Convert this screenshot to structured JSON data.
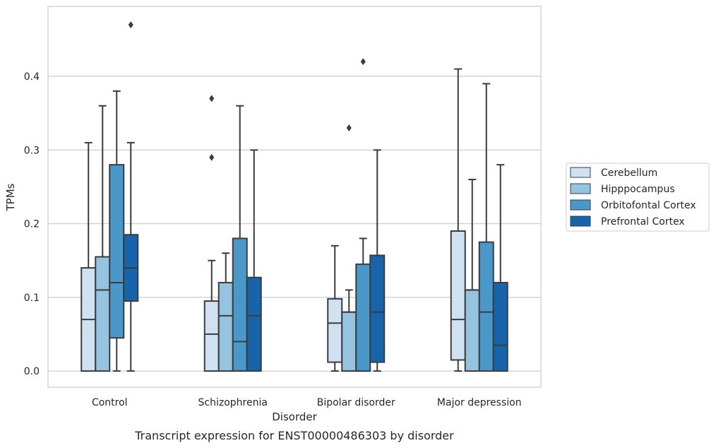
{
  "chart_data": {
    "type": "box",
    "caption": "Transcript expression for ENST00000486303 by disorder",
    "xlabel": "Disorder",
    "ylabel": "TPMs",
    "ylim": [
      -0.022,
      0.495
    ],
    "yticks": [
      0.0,
      0.1,
      0.2,
      0.3,
      0.4
    ],
    "ytick_labels": [
      "0.0",
      "0.1",
      "0.2",
      "0.3",
      "0.4"
    ],
    "grid": true,
    "legend_position": "right",
    "categories": [
      "Control",
      "Schizophrenia",
      "Bipolar disorder",
      "Major depression"
    ],
    "series": [
      {
        "name": "Cerebellum",
        "color": "#d0e1f2",
        "boxes": [
          {
            "whislo": 0.0,
            "q1": 0.0,
            "med": 0.07,
            "q3": 0.14,
            "whishi": 0.31,
            "fliers": []
          },
          {
            "whislo": 0.0,
            "q1": 0.0,
            "med": 0.05,
            "q3": 0.095,
            "whishi": 0.15,
            "fliers": [
              0.29,
              0.37
            ]
          },
          {
            "whislo": 0.0,
            "q1": 0.012,
            "med": 0.065,
            "q3": 0.098,
            "whishi": 0.17,
            "fliers": []
          },
          {
            "whislo": 0.0,
            "q1": 0.015,
            "med": 0.07,
            "q3": 0.19,
            "whishi": 0.41,
            "fliers": []
          }
        ]
      },
      {
        "name": "Hipppocampus",
        "color": "#94c4df",
        "boxes": [
          {
            "whislo": 0.0,
            "q1": 0.0,
            "med": 0.11,
            "q3": 0.155,
            "whishi": 0.36,
            "fliers": []
          },
          {
            "whislo": 0.0,
            "q1": 0.0,
            "med": 0.075,
            "q3": 0.12,
            "whishi": 0.16,
            "fliers": []
          },
          {
            "whislo": 0.0,
            "q1": 0.0,
            "med": 0.08,
            "q3": 0.08,
            "whishi": 0.11,
            "fliers": [
              0.33
            ]
          },
          {
            "whislo": 0.0,
            "q1": 0.0,
            "med": 0.11,
            "q3": 0.11,
            "whishi": 0.26,
            "fliers": []
          }
        ]
      },
      {
        "name": "Orbitofontal Cortex",
        "color": "#4a98c9",
        "boxes": [
          {
            "whislo": 0.0,
            "q1": 0.045,
            "med": 0.12,
            "q3": 0.28,
            "whishi": 0.38,
            "fliers": []
          },
          {
            "whislo": 0.0,
            "q1": 0.0,
            "med": 0.04,
            "q3": 0.18,
            "whishi": 0.36,
            "fliers": []
          },
          {
            "whislo": 0.0,
            "q1": 0.0,
            "med": 0.0,
            "q3": 0.145,
            "whishi": 0.18,
            "fliers": [
              0.42
            ]
          },
          {
            "whislo": 0.0,
            "q1": 0.0,
            "med": 0.08,
            "q3": 0.175,
            "whishi": 0.39,
            "fliers": []
          }
        ]
      },
      {
        "name": "Prefrontal Cortex",
        "color": "#1764ab",
        "boxes": [
          {
            "whislo": 0.0,
            "q1": 0.095,
            "med": 0.14,
            "q3": 0.185,
            "whishi": 0.31,
            "fliers": [
              0.47
            ]
          },
          {
            "whislo": 0.0,
            "q1": 0.0,
            "med": 0.075,
            "q3": 0.127,
            "whishi": 0.3,
            "fliers": []
          },
          {
            "whislo": 0.0,
            "q1": 0.012,
            "med": 0.08,
            "q3": 0.157,
            "whishi": 0.3,
            "fliers": []
          },
          {
            "whislo": 0.0,
            "q1": 0.0,
            "med": 0.035,
            "q3": 0.12,
            "whishi": 0.28,
            "fliers": []
          }
        ]
      }
    ]
  }
}
